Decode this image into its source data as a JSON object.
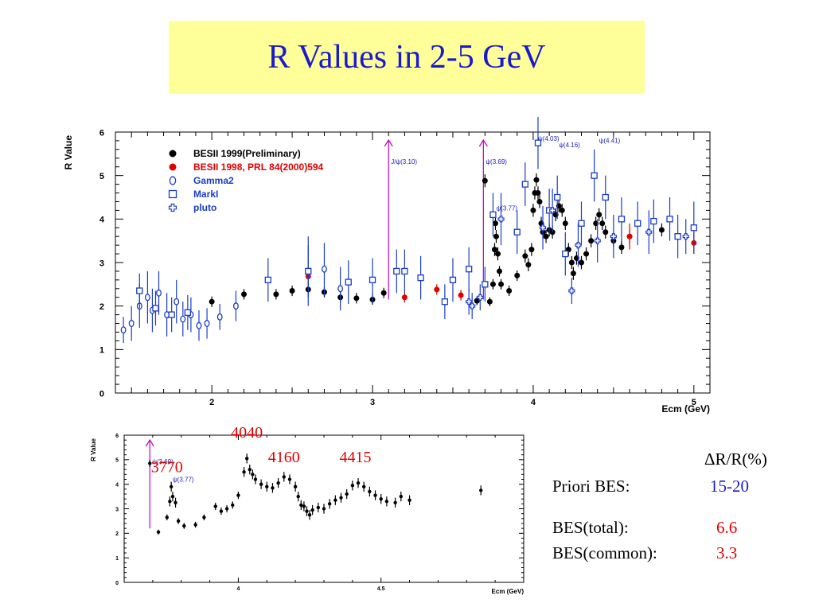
{
  "title": "R Values in 2-5 GeV",
  "colors": {
    "title_bg": "#ffff99",
    "title_fg": "#1a1acd",
    "black": "#000000",
    "red": "#e00000",
    "blue": "#1a3cc8",
    "magenta": "#c000c0"
  },
  "table": {
    "header": "ΔR/R(%)",
    "rows": [
      {
        "label": "Priori BES:",
        "value": "15-20",
        "color": "#1a1acd"
      },
      {
        "label": "BES(total):",
        "value": "6.6",
        "color": "#e00000"
      },
      {
        "label": "BES(common):",
        "value": "3.3",
        "color": "#e00000"
      }
    ]
  },
  "chart_data": [
    {
      "type": "scatter",
      "xlabel": "Ecm (GeV)",
      "ylabel": "R Value",
      "xlim": [
        1.4,
        5.1
      ],
      "ylim": [
        0,
        6
      ],
      "xticks": [
        2,
        3,
        4,
        5
      ],
      "yticks": [
        0,
        1,
        2,
        3,
        4,
        5,
        6
      ],
      "legend_position": "top-left",
      "resonances": [
        {
          "x": 3.1,
          "label": "J/ψ(3.10)"
        },
        {
          "x": 3.69,
          "label": "ψ(3.69)"
        }
      ],
      "annotations": [
        {
          "x": 3.77,
          "y": 4.2,
          "label": "ψ(3.77)"
        },
        {
          "x": 4.03,
          "y": 5.8,
          "label": "ψ(4.03)"
        },
        {
          "x": 4.16,
          "y": 5.65,
          "label": "ψ(4.16)"
        },
        {
          "x": 4.41,
          "y": 5.75,
          "label": "ψ(4.41)"
        }
      ],
      "series": [
        {
          "name": "BESII 1999(Preliminary)",
          "marker": "dot",
          "color": "#000000",
          "points": [
            [
              2.0,
              2.1,
              0.12
            ],
            [
              2.2,
              2.27,
              0.12
            ],
            [
              2.4,
              2.27,
              0.12
            ],
            [
              2.5,
              2.35,
              0.12
            ],
            [
              2.6,
              2.38,
              0.12
            ],
            [
              2.7,
              2.32,
              0.12
            ],
            [
              2.8,
              2.2,
              0.12
            ],
            [
              2.9,
              2.18,
              0.12
            ],
            [
              3.0,
              2.15,
              0.12
            ],
            [
              3.07,
              2.3,
              0.12
            ],
            [
              3.65,
              2.12,
              0.1
            ],
            [
              3.7,
              4.88,
              0.15
            ],
            [
              3.73,
              2.1,
              0.1
            ],
            [
              3.75,
              2.5,
              0.12
            ],
            [
              3.76,
              3.3,
              0.15
            ],
            [
              3.765,
              3.9,
              0.15
            ],
            [
              3.77,
              3.6,
              0.15
            ],
            [
              3.78,
              3.2,
              0.15
            ],
            [
              3.79,
              2.8,
              0.12
            ],
            [
              3.8,
              2.5,
              0.12
            ],
            [
              3.85,
              2.35,
              0.12
            ],
            [
              3.9,
              2.7,
              0.12
            ],
            [
              3.95,
              3.15,
              0.15
            ],
            [
              3.97,
              2.95,
              0.15
            ],
            [
              3.99,
              3.3,
              0.15
            ],
            [
              4.0,
              4.2,
              0.15
            ],
            [
              4.01,
              4.6,
              0.15
            ],
            [
              4.02,
              4.9,
              0.15
            ],
            [
              4.03,
              4.6,
              0.15
            ],
            [
              4.04,
              4.4,
              0.15
            ],
            [
              4.05,
              3.9,
              0.15
            ],
            [
              4.06,
              3.7,
              0.15
            ],
            [
              4.08,
              3.6,
              0.15
            ],
            [
              4.1,
              3.75,
              0.15
            ],
            [
              4.12,
              3.7,
              0.15
            ],
            [
              4.14,
              4.1,
              0.15
            ],
            [
              4.16,
              4.3,
              0.15
            ],
            [
              4.18,
              4.2,
              0.15
            ],
            [
              4.2,
              3.9,
              0.15
            ],
            [
              4.22,
              3.3,
              0.15
            ],
            [
              4.24,
              3.0,
              0.15
            ],
            [
              4.25,
              2.75,
              0.15
            ],
            [
              4.27,
              3.1,
              0.15
            ],
            [
              4.3,
              3.0,
              0.15
            ],
            [
              4.33,
              3.2,
              0.15
            ],
            [
              4.36,
              3.5,
              0.15
            ],
            [
              4.39,
              3.9,
              0.15
            ],
            [
              4.41,
              4.1,
              0.15
            ],
            [
              4.43,
              3.9,
              0.15
            ],
            [
              4.45,
              3.7,
              0.15
            ],
            [
              4.5,
              3.5,
              0.15
            ],
            [
              4.55,
              3.35,
              0.15
            ],
            [
              4.6,
              3.6,
              0.15
            ],
            [
              4.8,
              3.75,
              0.15
            ]
          ]
        },
        {
          "name": "BESII 1998, PRL 84(2000)594",
          "marker": "dot",
          "color": "#e00000",
          "points": [
            [
              2.6,
              2.68,
              0.15
            ],
            [
              3.2,
              2.2,
              0.12
            ],
            [
              3.4,
              2.38,
              0.12
            ],
            [
              3.55,
              2.25,
              0.12
            ],
            [
              4.6,
              3.6,
              0.3
            ],
            [
              5.0,
              3.45,
              0.25
            ]
          ]
        },
        {
          "name": "Gamma2",
          "marker": "circle",
          "color": "#1a3cc8",
          "points": [
            [
              1.45,
              1.45,
              0.3
            ],
            [
              1.5,
              1.6,
              0.4
            ],
            [
              1.55,
              2.0,
              0.5
            ],
            [
              1.6,
              2.2,
              0.6
            ],
            [
              1.63,
              1.9,
              0.5
            ],
            [
              1.67,
              2.3,
              0.5
            ],
            [
              1.72,
              1.8,
              0.5
            ],
            [
              1.78,
              2.1,
              0.5
            ],
            [
              1.82,
              1.7,
              0.4
            ],
            [
              1.87,
              1.8,
              0.4
            ],
            [
              1.92,
              1.55,
              0.35
            ],
            [
              1.97,
              1.6,
              0.35
            ],
            [
              2.05,
              1.75,
              0.3
            ],
            [
              2.15,
              2.0,
              0.35
            ],
            [
              2.6,
              2.8,
              0.6
            ],
            [
              2.7,
              2.85,
              0.6
            ],
            [
              2.8,
              2.4,
              0.5
            ]
          ]
        },
        {
          "name": "MarkI",
          "marker": "square",
          "color": "#1a3cc8",
          "points": [
            [
              1.55,
              2.35,
              0.4
            ],
            [
              1.65,
              1.95,
              0.4
            ],
            [
              1.75,
              1.8,
              0.4
            ],
            [
              1.85,
              1.85,
              0.4
            ],
            [
              2.35,
              2.6,
              0.5
            ],
            [
              2.6,
              2.8,
              0.8
            ],
            [
              2.85,
              2.55,
              0.5
            ],
            [
              3.0,
              2.6,
              0.5
            ],
            [
              3.15,
              2.8,
              0.5
            ],
            [
              3.2,
              2.8,
              0.5
            ],
            [
              3.3,
              2.65,
              0.5
            ],
            [
              3.45,
              2.1,
              0.4
            ],
            [
              3.5,
              2.6,
              0.5
            ],
            [
              3.6,
              2.85,
              0.5
            ],
            [
              3.7,
              2.5,
              0.4
            ],
            [
              3.75,
              4.1,
              0.5
            ],
            [
              3.9,
              3.7,
              0.5
            ],
            [
              3.95,
              4.8,
              0.5
            ],
            [
              4.03,
              5.75,
              0.6
            ],
            [
              4.1,
              4.2,
              0.5
            ],
            [
              4.15,
              4.5,
              0.5
            ],
            [
              4.2,
              3.2,
              0.5
            ],
            [
              4.3,
              3.9,
              0.5
            ],
            [
              4.38,
              5.0,
              0.6
            ],
            [
              4.45,
              4.5,
              0.5
            ],
            [
              4.55,
              4.0,
              0.5
            ],
            [
              4.65,
              3.9,
              0.5
            ],
            [
              4.75,
              3.95,
              0.5
            ],
            [
              4.85,
              4.0,
              0.5
            ],
            [
              4.9,
              3.6,
              0.5
            ],
            [
              5.0,
              3.8,
              0.6
            ]
          ]
        },
        {
          "name": "pluto",
          "marker": "plus",
          "color": "#1a3cc8",
          "points": [
            [
              3.6,
              2.1,
              0.3
            ],
            [
              3.62,
              2.0,
              0.3
            ],
            [
              3.67,
              2.2,
              0.3
            ],
            [
              3.8,
              4.0,
              0.6
            ],
            [
              4.06,
              3.8,
              0.5
            ],
            [
              4.12,
              4.2,
              0.5
            ],
            [
              4.24,
              2.35,
              0.3
            ],
            [
              4.28,
              3.4,
              0.5
            ],
            [
              4.4,
              3.5,
              0.5
            ],
            [
              4.5,
              3.6,
              0.5
            ],
            [
              4.72,
              3.7,
              0.5
            ],
            [
              4.95,
              3.6,
              0.4
            ]
          ]
        }
      ]
    },
    {
      "type": "scatter",
      "xlabel": "Ecm (GeV)",
      "ylabel": "R Value",
      "xlim": [
        3.6,
        5.0
      ],
      "ylim": [
        0,
        6
      ],
      "xticks": [
        4,
        4.5
      ],
      "yticks": [
        0,
        1,
        2,
        3,
        4,
        5,
        6
      ],
      "resonances": [
        {
          "x": 3.69,
          "label": "ψ(3.69)"
        }
      ],
      "annotations": [
        {
          "x": 3.77,
          "y": 4.1,
          "label": "ψ(3.77)"
        }
      ],
      "peak_labels": [
        {
          "x": 3.75,
          "y": 4.5,
          "label": "3770"
        },
        {
          "x": 4.03,
          "y": 5.9,
          "label": "4040"
        },
        {
          "x": 4.16,
          "y": 4.9,
          "label": "4160"
        },
        {
          "x": 4.41,
          "y": 4.9,
          "label": "4415"
        }
      ],
      "series": [
        {
          "name": "",
          "marker": "dot",
          "color": "#000000",
          "points": [
            [
              3.69,
              4.85,
              0.15
            ],
            [
              3.72,
              2.05,
              0.1
            ],
            [
              3.75,
              2.65,
              0.12
            ],
            [
              3.76,
              3.3,
              0.2
            ],
            [
              3.765,
              3.9,
              0.2
            ],
            [
              3.77,
              3.5,
              0.2
            ],
            [
              3.78,
              3.25,
              0.2
            ],
            [
              3.79,
              2.5,
              0.12
            ],
            [
              3.81,
              2.3,
              0.12
            ],
            [
              3.85,
              2.35,
              0.12
            ],
            [
              3.88,
              2.65,
              0.12
            ],
            [
              3.92,
              3.1,
              0.15
            ],
            [
              3.94,
              2.9,
              0.15
            ],
            [
              3.96,
              3.0,
              0.15
            ],
            [
              3.98,
              3.15,
              0.15
            ],
            [
              4.0,
              3.55,
              0.15
            ],
            [
              4.02,
              4.5,
              0.2
            ],
            [
              4.03,
              5.05,
              0.2
            ],
            [
              4.04,
              4.6,
              0.2
            ],
            [
              4.05,
              4.4,
              0.2
            ],
            [
              4.06,
              4.2,
              0.2
            ],
            [
              4.08,
              4.0,
              0.2
            ],
            [
              4.1,
              3.9,
              0.2
            ],
            [
              4.12,
              3.85,
              0.2
            ],
            [
              4.14,
              4.05,
              0.2
            ],
            [
              4.16,
              4.3,
              0.2
            ],
            [
              4.18,
              4.2,
              0.2
            ],
            [
              4.2,
              3.9,
              0.2
            ],
            [
              4.21,
              3.5,
              0.2
            ],
            [
              4.22,
              3.15,
              0.2
            ],
            [
              4.23,
              3.1,
              0.2
            ],
            [
              4.24,
              2.9,
              0.2
            ],
            [
              4.25,
              2.75,
              0.2
            ],
            [
              4.26,
              2.95,
              0.2
            ],
            [
              4.28,
              3.05,
              0.2
            ],
            [
              4.3,
              3.0,
              0.2
            ],
            [
              4.32,
              3.2,
              0.2
            ],
            [
              4.34,
              3.35,
              0.2
            ],
            [
              4.36,
              3.45,
              0.2
            ],
            [
              4.38,
              3.6,
              0.2
            ],
            [
              4.4,
              3.95,
              0.2
            ],
            [
              4.42,
              4.05,
              0.2
            ],
            [
              4.44,
              3.9,
              0.2
            ],
            [
              4.46,
              3.7,
              0.2
            ],
            [
              4.48,
              3.55,
              0.2
            ],
            [
              4.5,
              3.4,
              0.2
            ],
            [
              4.52,
              3.3,
              0.2
            ],
            [
              4.55,
              3.25,
              0.2
            ],
            [
              4.57,
              3.5,
              0.2
            ],
            [
              4.6,
              3.35,
              0.2
            ],
            [
              4.85,
              3.75,
              0.2
            ]
          ]
        }
      ]
    }
  ]
}
